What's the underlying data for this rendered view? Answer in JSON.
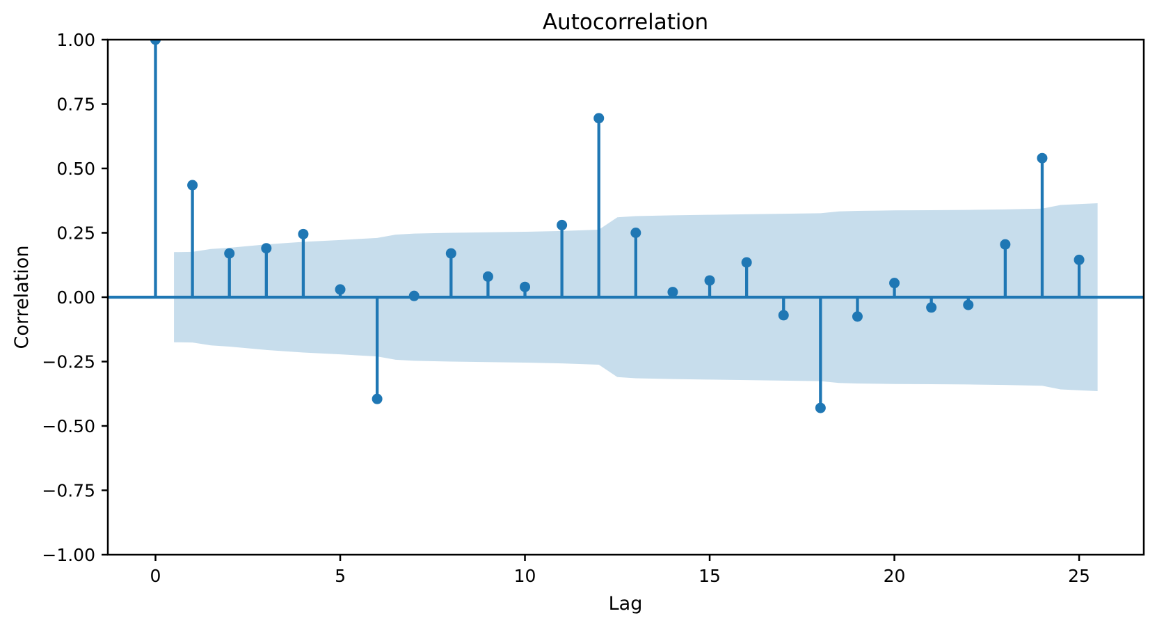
{
  "figure": {
    "title": "Autocorrelation",
    "xlabel": "Lag",
    "ylabel": "Correlation"
  },
  "colors": {
    "stem": "#1f77b4",
    "marker": "#1f77b4",
    "zero_line": "#1f77b4",
    "confidence_band": "#1f77b4",
    "confidence_band_opacity": 0.25,
    "axis": "#000000",
    "background": "#ffffff"
  },
  "chart_data": {
    "type": "stem",
    "title": "Autocorrelation",
    "xlabel": "Lag",
    "ylabel": "Correlation",
    "xlim": [
      -1.29,
      26.75
    ],
    "ylim": [
      -1.0,
      1.0
    ],
    "grid": false,
    "legend": null,
    "x_ticks": {
      "values": [
        0,
        5,
        10,
        15,
        20,
        25
      ],
      "labels": [
        "0",
        "5",
        "10",
        "15",
        "20",
        "25"
      ]
    },
    "y_ticks": {
      "values": [
        1.0,
        0.75,
        0.5,
        0.25,
        0.0,
        -0.25,
        -0.5,
        -0.75,
        -1.0
      ],
      "labels": [
        "1.00",
        "0.75",
        "0.50",
        "0.25",
        "0.00",
        "−0.25",
        "−0.50",
        "−0.75",
        "−1.00"
      ]
    },
    "lags": [
      0,
      1,
      2,
      3,
      4,
      5,
      6,
      7,
      8,
      9,
      10,
      11,
      12,
      13,
      14,
      15,
      16,
      17,
      18,
      19,
      20,
      21,
      22,
      23,
      24,
      25
    ],
    "acf_values": [
      1.0,
      0.435,
      0.17,
      0.19,
      0.245,
      0.03,
      -0.395,
      0.005,
      0.17,
      0.08,
      0.04,
      0.28,
      0.695,
      0.25,
      0.02,
      0.065,
      0.135,
      -0.07,
      -0.43,
      -0.075,
      0.055,
      -0.04,
      -0.03,
      0.205,
      0.54,
      0.145
    ],
    "confidence_band": {
      "x": [
        0.5,
        1,
        1.5,
        2,
        3,
        4,
        5,
        6,
        6.5,
        7,
        8,
        9,
        10,
        11,
        12,
        12.5,
        13,
        14,
        15,
        16,
        17,
        18,
        18.5,
        19,
        20,
        21,
        22,
        23,
        24,
        24.5,
        25.5
      ],
      "upper": [
        0.175,
        0.176,
        0.187,
        0.192,
        0.205,
        0.215,
        0.222,
        0.23,
        0.243,
        0.247,
        0.25,
        0.252,
        0.254,
        0.257,
        0.262,
        0.31,
        0.315,
        0.318,
        0.32,
        0.322,
        0.324,
        0.326,
        0.333,
        0.335,
        0.337,
        0.338,
        0.339,
        0.341,
        0.344,
        0.358,
        0.365
      ],
      "lower": [
        -0.175,
        -0.176,
        -0.187,
        -0.192,
        -0.205,
        -0.215,
        -0.222,
        -0.23,
        -0.243,
        -0.247,
        -0.25,
        -0.252,
        -0.254,
        -0.257,
        -0.262,
        -0.31,
        -0.315,
        -0.318,
        -0.32,
        -0.322,
        -0.324,
        -0.326,
        -0.333,
        -0.335,
        -0.337,
        -0.338,
        -0.339,
        -0.341,
        -0.344,
        -0.358,
        -0.365
      ]
    }
  }
}
